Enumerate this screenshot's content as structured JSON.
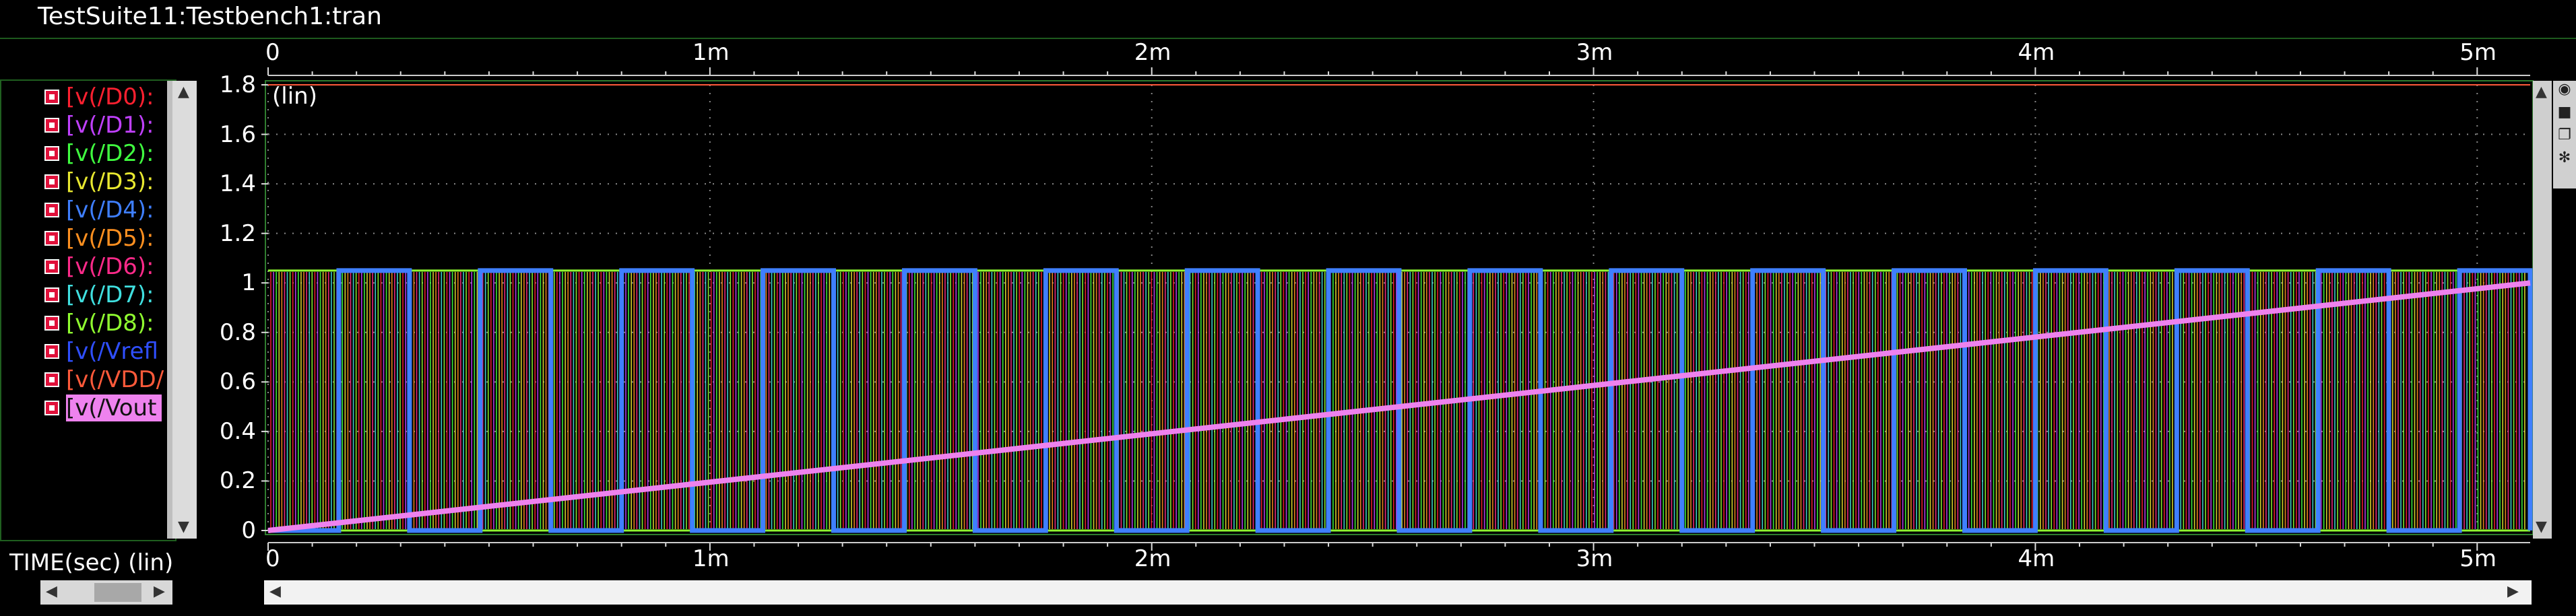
{
  "window": {
    "title": "TestSuite11:Testbench1:tran"
  },
  "legend": {
    "items": [
      {
        "label": "[v(/D0):",
        "color": "#ff2030"
      },
      {
        "label": "[v(/D1):",
        "color": "#c040ff"
      },
      {
        "label": "[v(/D2):",
        "color": "#40ff40"
      },
      {
        "label": "[v(/D3):",
        "color": "#e8e830"
      },
      {
        "label": "[v(/D4):",
        "color": "#3f7fff"
      },
      {
        "label": "[v(/D5):",
        "color": "#ff9020"
      },
      {
        "label": "[v(/D6):",
        "color": "#ff2a8a"
      },
      {
        "label": "[v(/D7):",
        "color": "#40e0e0"
      },
      {
        "label": "[v(/D8):",
        "color": "#90ff30"
      },
      {
        "label": "[v(/Vrefl",
        "color": "#2f4fff"
      },
      {
        "label": "[v(/VDD/",
        "color": "#ff5a3a"
      },
      {
        "label": "[v(/Vout",
        "color": "#ee82ee",
        "selected": true
      }
    ]
  },
  "plot": {
    "scale_label": "(lin)",
    "y_ticks": [
      "1.8",
      "1.6",
      "1.4",
      "1.2",
      "1",
      "0.8",
      "0.6",
      "0.4",
      "0.2",
      "0"
    ],
    "x_ticks": [
      "0",
      "1m",
      "2m",
      "3m",
      "4m",
      "5m"
    ],
    "x_axis_label": "TIME(sec) (lin)"
  },
  "chart_data": {
    "type": "line",
    "x_unit": "s",
    "xlim": [
      0,
      0.00512
    ],
    "ylim": [
      0,
      1.8
    ],
    "y_scale": "lin",
    "grid": true,
    "series": [
      {
        "name": "v(/Vout)",
        "x": [
          0,
          0.00512
        ],
        "values": [
          0,
          1.0
        ]
      },
      {
        "name": "v(/D4)",
        "x": [
          0,
          0.00512
        ],
        "values": [
          0,
          1.05
        ],
        "note_shape": "square"
      }
    ]
  }
}
